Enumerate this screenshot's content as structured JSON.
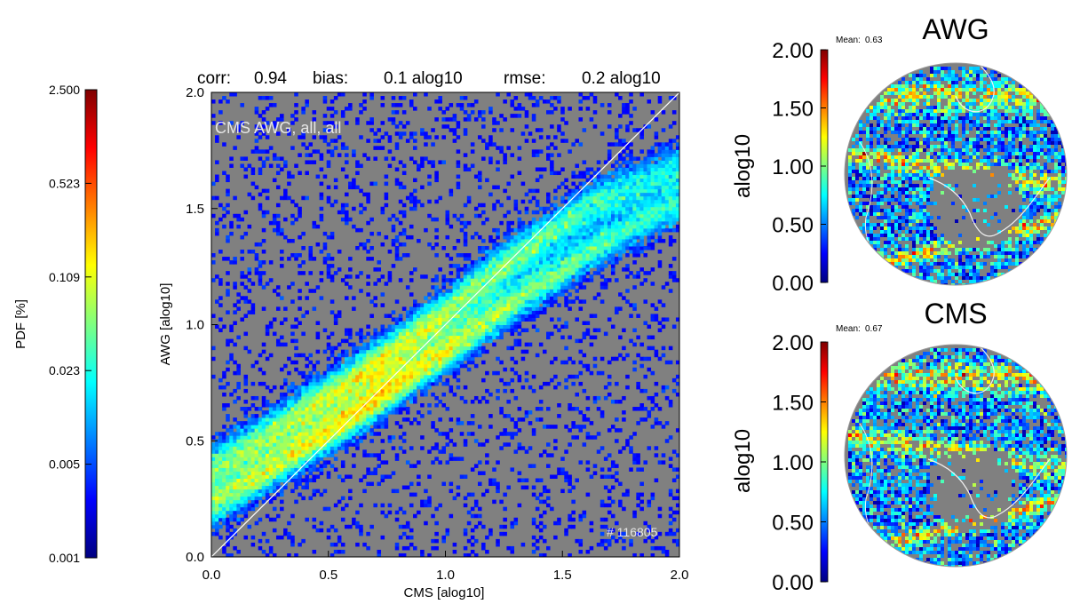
{
  "colors": {
    "plot_background": "#808080",
    "diagonal_line": "#ffffff",
    "annotation_text": "#e6e6e6",
    "colormap": [
      "#00007f",
      "#0000ff",
      "#007fff",
      "#00ffff",
      "#7fff7f",
      "#ffff00",
      "#ff7f00",
      "#ff0000",
      "#7f0000"
    ]
  },
  "pdf_colorbar": {
    "label": "PDF [%]",
    "ticks": [
      "2.500",
      "0.523",
      "0.109",
      "0.023",
      "0.005",
      "0.001"
    ]
  },
  "scatter": {
    "stats": {
      "corr_label": "corr:",
      "corr_value": "0.94",
      "bias_label": "bias:",
      "bias_value": "0.1 alog10",
      "rmse_label": "rmse:",
      "rmse_value": "0.2 alog10"
    },
    "annotation": "CMS AWG, all, all",
    "count_label": "# 116805",
    "xlabel": "CMS [alog10]",
    "ylabel": "AWG [alog10]",
    "xticks": [
      "0.0",
      "0.5",
      "1.0",
      "1.5",
      "2.0"
    ],
    "yticks": [
      "0.0",
      "0.5",
      "1.0",
      "1.5",
      "2.0"
    ]
  },
  "maps": [
    {
      "title": "AWG",
      "mean_label": "Mean:",
      "mean_value": "0.63",
      "colorbar_label": "alog10",
      "ticks": [
        "2.00",
        "1.50",
        "1.00",
        "0.50",
        "0.00"
      ]
    },
    {
      "title": "CMS",
      "mean_label": "Mean:",
      "mean_value": "0.67",
      "colorbar_label": "alog10",
      "ticks": [
        "2.00",
        "1.50",
        "1.00",
        "0.50",
        "0.00"
      ]
    }
  ],
  "chart_data": {
    "type": "heatmap",
    "title": "",
    "xlabel": "CMS [alog10]",
    "ylabel": "AWG [alog10]",
    "xlim": [
      0.0,
      2.0
    ],
    "ylim": [
      0.0,
      2.0
    ],
    "color_scale": "log",
    "color_label": "PDF [%]",
    "color_range": [
      0.001,
      2.5
    ],
    "n_points": 116805,
    "stats": {
      "corr": 0.94,
      "bias": 0.1,
      "rmse": 0.2,
      "unit": "alog10"
    },
    "one_to_one_line": true,
    "density_branches": [
      {
        "x": [
          0.0,
          0.2,
          0.4,
          0.6,
          0.8,
          1.0,
          1.2,
          1.4,
          1.6,
          1.8,
          2.0
        ],
        "y": [
          0.38,
          0.5,
          0.63,
          0.76,
          0.9,
          1.05,
          1.22,
          1.36,
          1.5,
          1.6,
          1.68
        ]
      },
      {
        "x": [
          0.0,
          0.2,
          0.4,
          0.6,
          0.8,
          1.0,
          1.2,
          1.4,
          1.6,
          1.8,
          2.0
        ],
        "y": [
          0.22,
          0.34,
          0.47,
          0.6,
          0.74,
          0.88,
          1.03,
          1.17,
          1.3,
          1.42,
          1.52
        ]
      }
    ]
  }
}
